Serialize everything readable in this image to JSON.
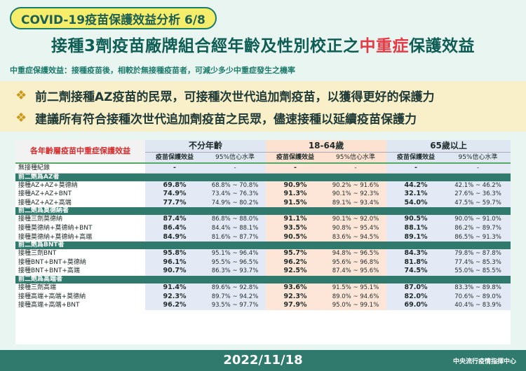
{
  "header": {
    "pill": "COVID-19疫苗保護效益分析 6/8",
    "title_pre": "接種3劑疫苗廠牌組合經年齡及性別校正之",
    "title_hl": "中重症",
    "title_post": "保護效益",
    "subtitle": "中重症保護效益：接種疫苗後，相較於無接種疫苗者，可減少多少中重症發生之機率"
  },
  "bullets": [
    "前二劑接種AZ疫苗的民眾，可接種次世代追加劑疫苗，以獲得更好的保護力",
    "建議所有符合接種次世代追加劑疫苗之民眾，儘速接種以延續疫苗保護力"
  ],
  "table": {
    "corner": "各年齡層疫苗中重症保護效益",
    "groups": [
      "不分年齡",
      "18-64歲",
      "65歲以上"
    ],
    "sub": [
      "疫苗保護效益",
      "95%信心水準"
    ],
    "none_row": {
      "label": "無接種紀錄",
      "vals": [
        "-",
        "-",
        "-",
        "-",
        "-",
        "-"
      ]
    },
    "sections": [
      {
        "title": "前二劑爲AZ者",
        "rows": [
          {
            "label": "接種AZ+AZ+莫德納",
            "vals": [
              "69.8%",
              "68.8% ~ 70.8%",
              "90.9%",
              "90.2% ~ 91.6%",
              "44.2%",
              "42.1% ~ 46.2%"
            ]
          },
          {
            "label": "接種AZ+AZ+BNT",
            "vals": [
              "74.9%",
              "73.4% ~ 76.3%",
              "91.3%",
              "90.1% ~ 92.3%",
              "32.1%",
              "27.6% ~ 36.3%"
            ]
          },
          {
            "label": "接種AZ+AZ+高端",
            "vals": [
              "77.7%",
              "74.9% ~ 80.2%",
              "91.5%",
              "89.1% ~ 93.4%",
              "54.0%",
              "47.5% ~ 59.7%"
            ]
          }
        ]
      },
      {
        "title": "前二劑爲莫德納者",
        "rows": [
          {
            "label": "接種三劑莫德納",
            "vals": [
              "87.4%",
              "86.8% ~ 88.0%",
              "91.1%",
              "90.1% ~ 92.0%",
              "90.5%",
              "90.0% ~ 91.0%"
            ]
          },
          {
            "label": "接種莫德納+莫德納+BNT",
            "vals": [
              "86.4%",
              "84.4% ~ 88.1%",
              "93.5%",
              "90.8% ~ 95.4%",
              "88.1%",
              "86.2% ~ 89.7%"
            ]
          },
          {
            "label": "接種莫德納+莫德納+高端",
            "vals": [
              "84.9%",
              "81.6% ~ 87.7%",
              "90.5%",
              "83.6% ~ 94.5%",
              "89.1%",
              "86.5% ~ 91.3%"
            ]
          }
        ]
      },
      {
        "title": "前二劑爲BNT者",
        "rows": [
          {
            "label": "接種三劑BNT",
            "vals": [
              "95.8%",
              "95.1% ~ 96.4%",
              "95.7%",
              "94.8% ~ 96.5%",
              "84.3%",
              "79.8% ~ 87.8%"
            ]
          },
          {
            "label": "接種BNT+BNT+莫德納",
            "vals": [
              "96.1%",
              "95.5% ~ 96.5%",
              "96.2%",
              "95.6% ~ 96.8%",
              "81.8%",
              "77.4% ~ 85.3%"
            ]
          },
          {
            "label": "接種BNT+BNT+高端",
            "vals": [
              "90.7%",
              "86.3% ~ 93.7%",
              "92.5%",
              "87.4% ~ 95.6%",
              "74.5%",
              "55.0% ~ 85.5%"
            ]
          }
        ]
      },
      {
        "title": "前二劑爲高端者",
        "rows": [
          {
            "label": "接種三劑高端",
            "vals": [
              "91.4%",
              "89.6% ~ 92.8%",
              "93.6%",
              "91.5% ~ 95.1%",
              "87.0%",
              "83.3% ~ 89.8%"
            ]
          },
          {
            "label": "接種高端+高端+莫德納",
            "vals": [
              "92.3%",
              "89.7% ~ 94.2%",
              "92.3%",
              "89.0% ~ 94.6%",
              "82.0%",
              "70.6% ~ 89.0%"
            ]
          },
          {
            "label": "接種高端+高端+BNT",
            "vals": [
              "96.2%",
              "93.5% ~ 97.7%",
              "97.9%",
              "95.0% ~ 99.1%",
              "69.0%",
              "40.4% ~ 83.9%"
            ]
          }
        ]
      }
    ]
  },
  "footer": {
    "date": "2022/11/18",
    "org": "中央流行疫情指揮中心"
  }
}
